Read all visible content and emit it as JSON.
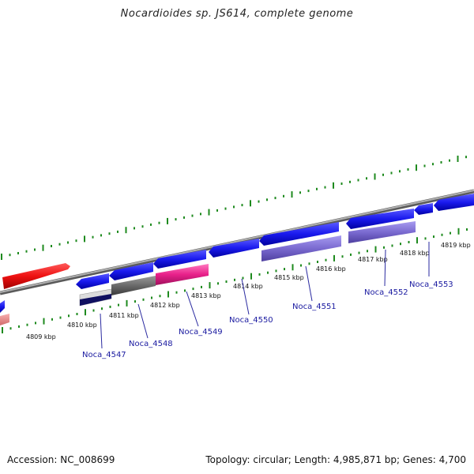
{
  "title": "Nocardioides sp. JS614, complete genome",
  "footer": {
    "accession": "Accession: NC_008699",
    "summary": "Topology: circular; Length: 4,985,871 bp; Genes: 4,700"
  },
  "map": {
    "kbp_labels": [
      "4809 kbp",
      "4810 kbp",
      "4811 kbp",
      "4812 kbp",
      "4813 kbp",
      "4814 kbp",
      "4815 kbp",
      "4816 kbp",
      "4817 kbp",
      "4818 kbp",
      "4819 kbp"
    ],
    "gene_labels": [
      "Noca_4547",
      "Noca_4548",
      "Noca_4549",
      "Noca_4550",
      "Noca_4551",
      "Noca_4552",
      "Noca_4553"
    ],
    "colors": {
      "forward_cds": "#ee1111",
      "reverse_cds": "#1a1aee",
      "product_purple": "#7a6ad0",
      "product_magenta": "#e8208a",
      "product_gray": "#6a6a6a",
      "product_navy": "#101060",
      "tick_green": "#1e8a1e",
      "backbone": "#8a8a8a",
      "label_blue": "#1a1aa0"
    }
  }
}
